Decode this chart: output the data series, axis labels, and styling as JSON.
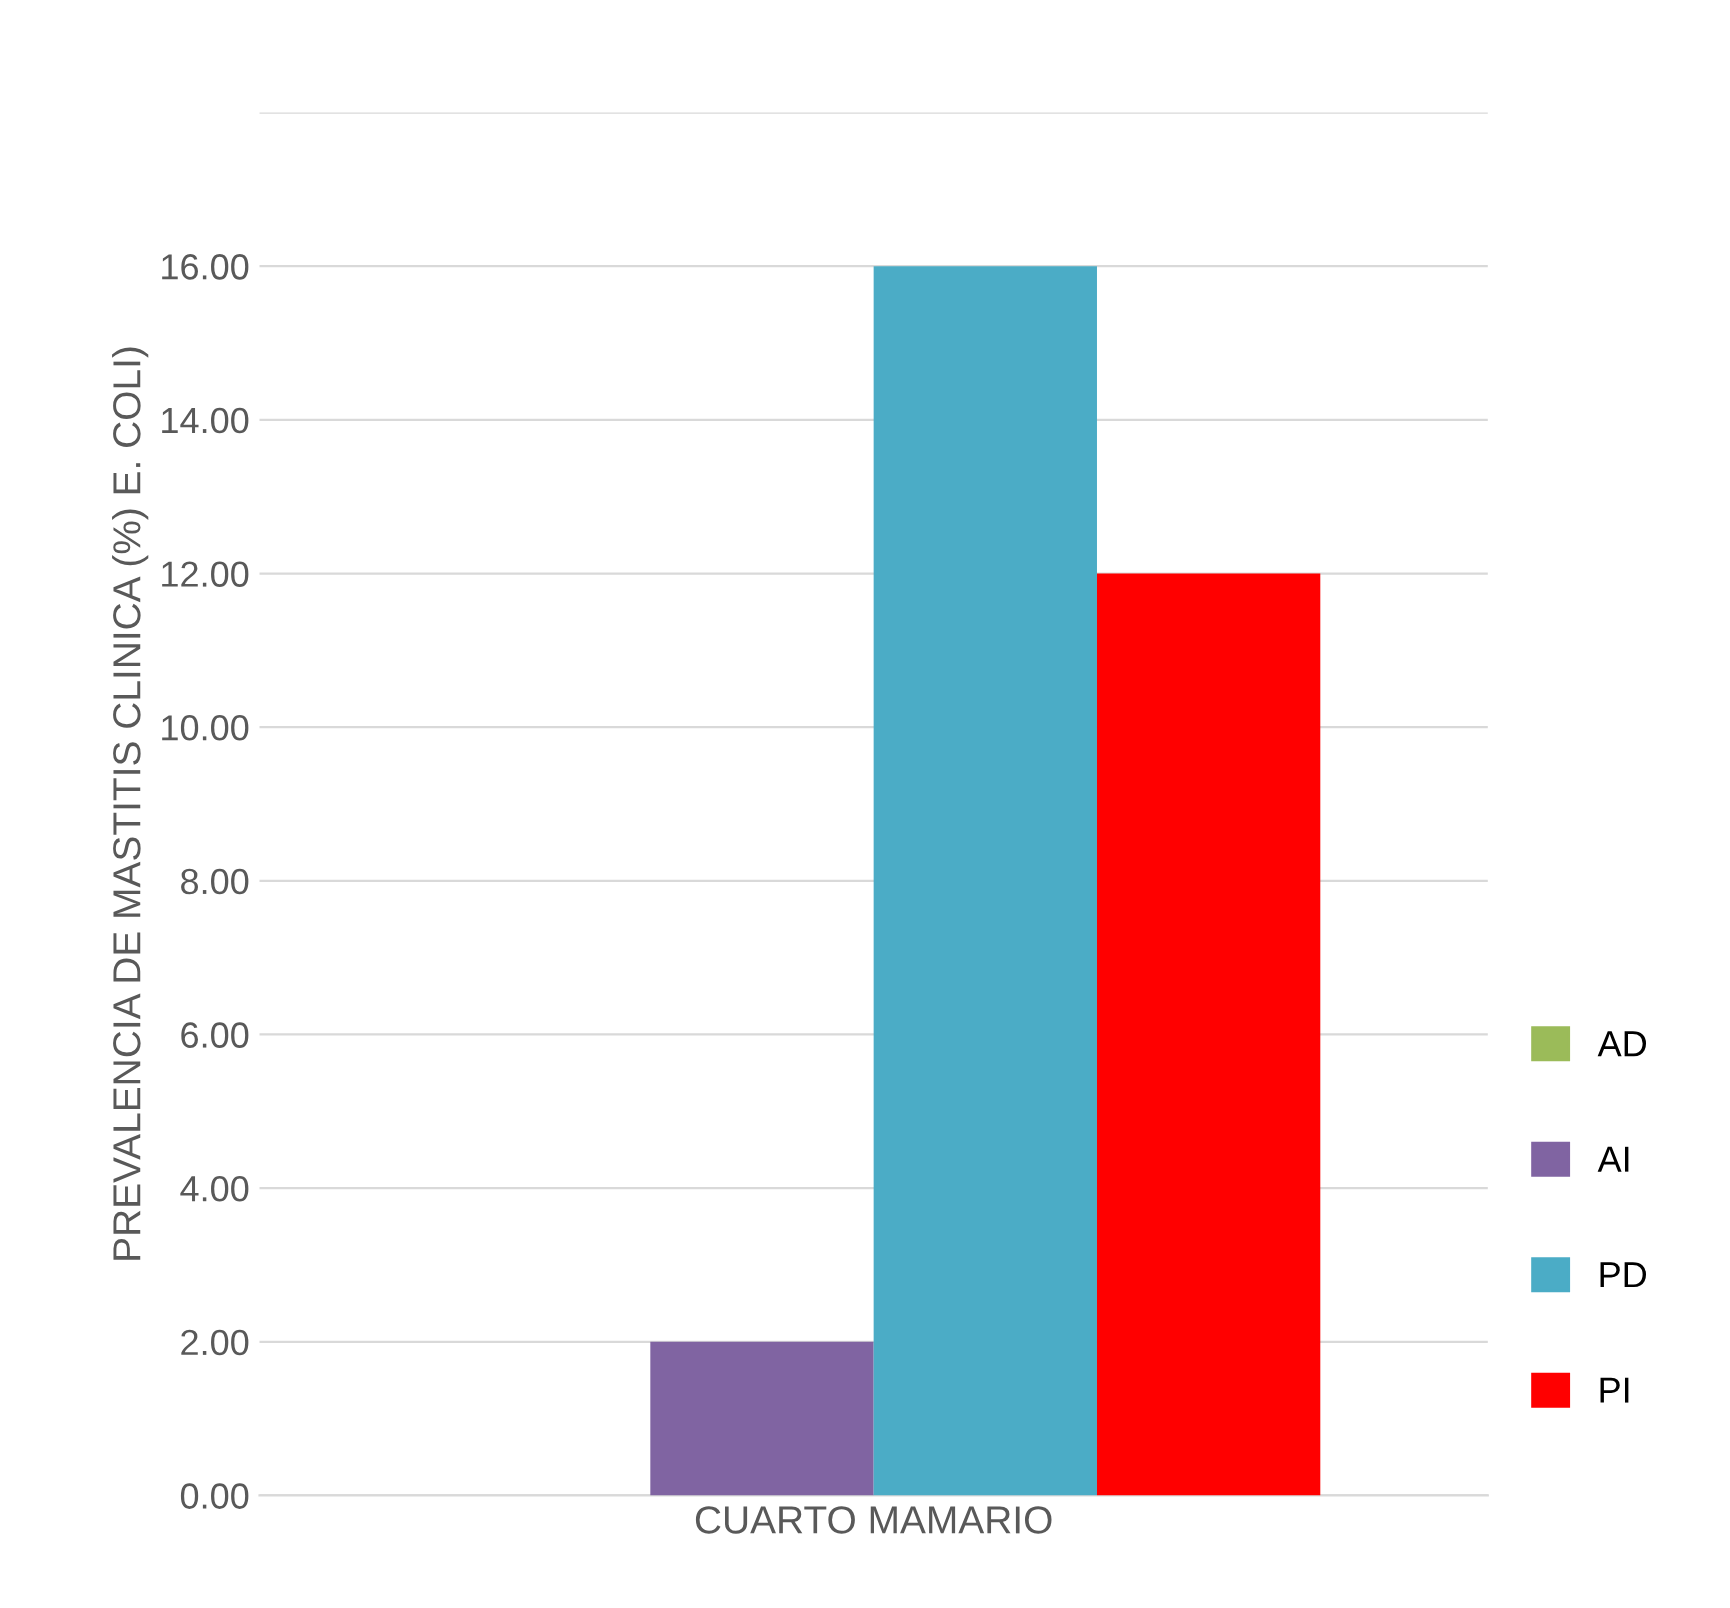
{
  "chart_data": {
    "type": "bar",
    "ylabel": "PREVALENCIA DE MASTITIS CLINICA (%) E. COLI)",
    "categories": [
      "CUARTO MAMARIO"
    ],
    "series": [
      {
        "name": "AD",
        "color": "#9bbb59",
        "values": [
          0
        ]
      },
      {
        "name": "AI",
        "color": "#8064a2",
        "values": [
          2.0
        ]
      },
      {
        "name": "PD",
        "color": "#4bacc6",
        "values": [
          16.0
        ]
      },
      {
        "name": "PI",
        "color": "#ff0000",
        "values": [
          12.0
        ]
      }
    ],
    "ylim": [
      0,
      18
    ],
    "yticks": [
      {
        "value": 0,
        "label": "0.00"
      },
      {
        "value": 2,
        "label": "2.00"
      },
      {
        "value": 4,
        "label": "4.00"
      },
      {
        "value": 6,
        "label": "6.00"
      },
      {
        "value": 8,
        "label": "8.00"
      },
      {
        "value": 10,
        "label": "10.00"
      },
      {
        "value": 12,
        "label": "12.00"
      },
      {
        "value": 14,
        "label": "14.00"
      },
      {
        "value": 16,
        "label": "16.00"
      },
      {
        "value": 18,
        "label": null
      }
    ],
    "grid": "y",
    "legend": "right"
  }
}
